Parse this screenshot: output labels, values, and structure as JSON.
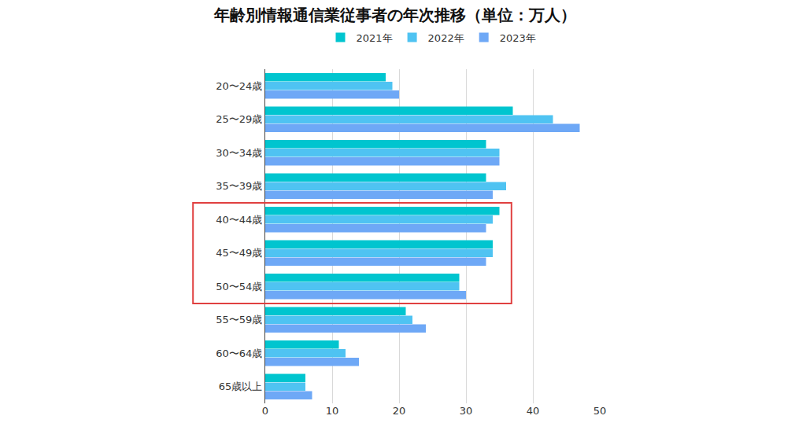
{
  "chart_data": {
    "type": "bar",
    "orientation": "horizontal",
    "title": "年齢別情報通信業従事者の年次推移（単位：万人）",
    "categories": [
      "20〜24歳",
      "25〜29歳",
      "30〜34歳",
      "35〜39歳",
      "40〜44歳",
      "45〜49歳",
      "50〜54歳",
      "55〜59歳",
      "60〜64歳",
      "65歳以上"
    ],
    "series": [
      {
        "name": "2021年",
        "color": "#00c5cf",
        "values": [
          18,
          37,
          33,
          33,
          35,
          34,
          29,
          21,
          11,
          6
        ]
      },
      {
        "name": "2022年",
        "color": "#4fc3f2",
        "values": [
          19,
          43,
          35,
          36,
          34,
          34,
          29,
          22,
          12,
          6
        ]
      },
      {
        "name": "2023年",
        "color": "#6ea8f6",
        "values": [
          20,
          47,
          35,
          34,
          33,
          33,
          30,
          24,
          14,
          7
        ]
      }
    ],
    "xlim": [
      0,
      50
    ],
    "xticks": [
      0,
      10,
      20,
      30,
      40,
      50
    ],
    "grid": true,
    "legend": "top"
  }
}
